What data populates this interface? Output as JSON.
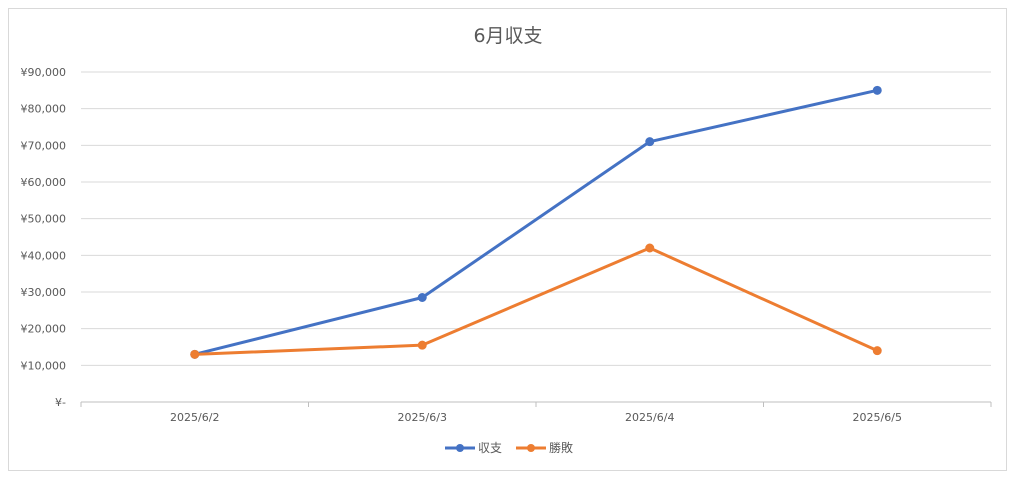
{
  "chart_data": {
    "type": "line",
    "title": "6月収支",
    "xlabel": "",
    "ylabel": "",
    "categories": [
      "2025/6/2",
      "2025/6/3",
      "2025/6/4",
      "2025/6/5"
    ],
    "ylim": [
      0,
      90000
    ],
    "yticks": [
      0,
      10000,
      20000,
      30000,
      40000,
      50000,
      60000,
      70000,
      80000,
      90000
    ],
    "ytick_labels": [
      "¥-",
      "¥10,000",
      "¥20,000",
      "¥30,000",
      "¥40,000",
      "¥50,000",
      "¥60,000",
      "¥70,000",
      "¥80,000",
      "¥90,000"
    ],
    "grid": true,
    "legend_position": "bottom",
    "series": [
      {
        "name": "収支",
        "color": "#4472c4",
        "values": [
          13000,
          28500,
          71000,
          85000
        ]
      },
      {
        "name": "勝敗",
        "color": "#ed7d31",
        "values": [
          13000,
          15500,
          42000,
          14000
        ]
      }
    ]
  }
}
